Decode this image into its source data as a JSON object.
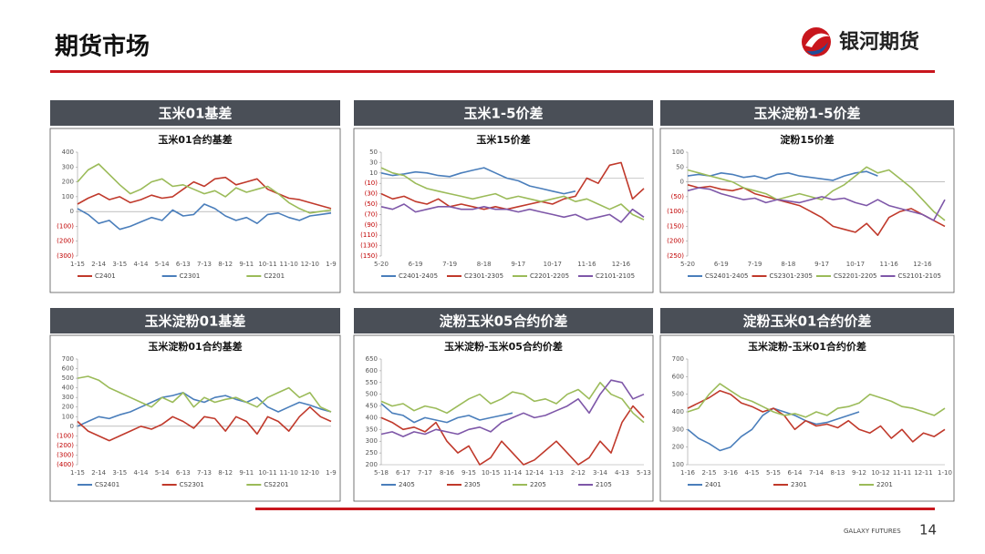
{
  "page_title": "期货市场",
  "logo_text": "银河期货",
  "footer_brand": "GALAXY FUTURES",
  "page_number": "14",
  "panels": [
    "玉米01基差",
    "玉米1-5价差",
    "玉米淀粉1-5价差",
    "玉米淀粉01基差",
    "淀粉玉米05合约价差",
    "淀粉玉米01合约价差"
  ],
  "chart_data": [
    {
      "type": "line",
      "title": "玉米01合约基差",
      "categories": [
        "1-15",
        null,
        "2-14",
        null,
        "3-15",
        null,
        "4-14",
        null,
        "5-14",
        null,
        "6-13",
        null,
        "7-13",
        null,
        "8-12",
        null,
        "9-11",
        null,
        "10-11",
        null,
        "11-10",
        null,
        "12-10",
        null,
        "1-9"
      ],
      "ylim": [
        -300,
        400
      ],
      "yticks": [
        400,
        300,
        200,
        100,
        0,
        {
          "value": -100,
          "label": "(100)"
        },
        {
          "value": -200,
          "label": "(200)"
        },
        {
          "value": -300,
          "label": "(300)"
        }
      ],
      "series": [
        {
          "name": "C2401",
          "color": "#c0392b",
          "values": [
            50,
            90,
            120,
            80,
            100,
            60,
            80,
            110,
            90,
            100,
            150,
            200,
            170,
            220,
            230,
            180,
            200,
            220,
            150,
            120,
            90,
            80,
            60,
            40,
            20
          ]
        },
        {
          "name": "C2301",
          "color": "#4a7ebb",
          "values": [
            20,
            -20,
            -80,
            -60,
            -120,
            -100,
            -70,
            -40,
            -60,
            10,
            -30,
            -20,
            50,
            20,
            -30,
            -60,
            -40,
            -80,
            -20,
            -10,
            -40,
            -60,
            -30,
            -20,
            -10
          ]
        },
        {
          "name": "C2201",
          "color": "#9bbb59",
          "values": [
            200,
            280,
            320,
            250,
            180,
            120,
            150,
            200,
            220,
            170,
            180,
            150,
            120,
            140,
            100,
            160,
            130,
            150,
            170,
            120,
            60,
            20,
            -10,
            0,
            10
          ]
        }
      ]
    },
    {
      "type": "line",
      "title": "玉米15价差",
      "categories": [
        "5-20",
        null,
        null,
        "6-19",
        null,
        null,
        "7-19",
        null,
        null,
        "8-18",
        null,
        null,
        "9-17",
        null,
        null,
        "10-17",
        null,
        null,
        "11-16",
        null,
        null,
        "12-16",
        null,
        null
      ],
      "ylim": [
        -150,
        50
      ],
      "yticks": [
        50,
        30,
        10,
        {
          "value": -10,
          "label": "(10)"
        },
        {
          "value": -30,
          "label": "(30)"
        },
        {
          "value": -50,
          "label": "(50)"
        },
        {
          "value": -70,
          "label": "(70)"
        },
        {
          "value": -90,
          "label": "(90)"
        },
        {
          "value": -110,
          "label": "(110)"
        },
        {
          "value": -130,
          "label": "(130)"
        },
        {
          "value": -150,
          "label": "(150)"
        }
      ],
      "series": [
        {
          "name": "C2401-2405",
          "color": "#4a7ebb",
          "values": [
            10,
            5,
            8,
            12,
            10,
            5,
            3,
            10,
            15,
            20,
            10,
            0,
            -5,
            -15,
            -20,
            -25,
            -30,
            -25,
            null,
            null,
            null,
            null,
            null,
            null
          ]
        },
        {
          "name": "C2301-2305",
          "color": "#c0392b",
          "values": [
            -30,
            -40,
            -35,
            -45,
            -50,
            -40,
            -55,
            -50,
            -55,
            -60,
            -55,
            -60,
            -55,
            -50,
            -45,
            -50,
            -40,
            -35,
            0,
            -10,
            25,
            30,
            -40,
            -20
          ]
        },
        {
          "name": "C2201-2205",
          "color": "#9bbb59",
          "values": [
            20,
            10,
            5,
            -10,
            -20,
            -25,
            -30,
            -35,
            -40,
            -35,
            -30,
            -40,
            -35,
            -40,
            -45,
            -40,
            -35,
            -45,
            -40,
            -50,
            -60,
            -50,
            -70,
            -80
          ]
        },
        {
          "name": "C2101-2105",
          "color": "#7e57a8",
          "values": [
            -55,
            -60,
            -50,
            -65,
            -60,
            -55,
            -55,
            -60,
            -60,
            -55,
            -60,
            -60,
            -65,
            -60,
            -65,
            -70,
            -75,
            -70,
            -80,
            -75,
            -70,
            -85,
            -60,
            -75
          ]
        }
      ]
    },
    {
      "type": "line",
      "title": "淀粉15价差",
      "categories": [
        "5-20",
        null,
        null,
        "6-19",
        null,
        null,
        "7-19",
        null,
        null,
        "8-18",
        null,
        null,
        "9-17",
        null,
        null,
        "10-17",
        null,
        null,
        "11-16",
        null,
        null,
        "12-16",
        null,
        null
      ],
      "ylim": [
        -250,
        100
      ],
      "yticks": [
        100,
        50,
        0,
        {
          "value": -50,
          "label": "(50)"
        },
        {
          "value": -100,
          "label": "(100)"
        },
        {
          "value": -150,
          "label": "(150)"
        },
        {
          "value": -200,
          "label": "(200)"
        },
        {
          "value": -250,
          "label": "(250)"
        }
      ],
      "series": [
        {
          "name": "CS2401-2405",
          "color": "#4a7ebb",
          "values": [
            20,
            25,
            20,
            30,
            25,
            15,
            20,
            10,
            25,
            30,
            20,
            15,
            10,
            5,
            20,
            30,
            35,
            20,
            null,
            null,
            null,
            null,
            null,
            null
          ]
        },
        {
          "name": "CS2301-2305",
          "color": "#c0392b",
          "values": [
            -10,
            -20,
            -15,
            -25,
            -30,
            -20,
            -40,
            -50,
            -60,
            -70,
            -80,
            -100,
            -120,
            -150,
            -160,
            -170,
            -140,
            -180,
            -120,
            -100,
            -90,
            -110,
            -130,
            -150
          ]
        },
        {
          "name": "CS2201-2205",
          "color": "#9bbb59",
          "values": [
            40,
            30,
            20,
            10,
            0,
            -20,
            -30,
            -40,
            -60,
            -50,
            -40,
            -50,
            -60,
            -30,
            -10,
            20,
            50,
            30,
            40,
            10,
            -20,
            -60,
            -100,
            -130
          ]
        },
        {
          "name": "CS2101-2105",
          "color": "#7e57a8",
          "values": [
            -30,
            -20,
            -25,
            -40,
            -50,
            -60,
            -55,
            -70,
            -60,
            -65,
            -70,
            -60,
            -50,
            -60,
            -55,
            -70,
            -80,
            -60,
            -80,
            -90,
            -100,
            -110,
            -130,
            -60
          ]
        }
      ]
    },
    {
      "type": "line",
      "title": "玉米淀粉01合约基差",
      "categories": [
        "1-15",
        null,
        "2-14",
        null,
        "3-15",
        null,
        "4-14",
        null,
        "5-14",
        null,
        "6-13",
        null,
        "7-13",
        null,
        "8-12",
        null,
        "9-11",
        null,
        "10-11",
        null,
        "11-10",
        null,
        "12-10",
        null,
        "1-9"
      ],
      "ylim": [
        -400,
        700
      ],
      "yticks": [
        700,
        600,
        500,
        400,
        300,
        200,
        100,
        0,
        {
          "value": -100,
          "label": "(100)"
        },
        {
          "value": -200,
          "label": "(200)"
        },
        {
          "value": -300,
          "label": "(300)"
        },
        {
          "value": -400,
          "label": "(400)"
        }
      ],
      "series": [
        {
          "name": "CS2401",
          "color": "#4a7ebb",
          "values": [
            0,
            50,
            100,
            80,
            120,
            150,
            200,
            250,
            300,
            320,
            350,
            280,
            250,
            300,
            320,
            280,
            250,
            300,
            200,
            150,
            200,
            250,
            220,
            180,
            150
          ]
        },
        {
          "name": "CS2301",
          "color": "#c0392b",
          "values": [
            50,
            -50,
            -100,
            -150,
            -100,
            -50,
            0,
            -30,
            20,
            100,
            50,
            -20,
            100,
            80,
            -50,
            100,
            50,
            -80,
            100,
            50,
            -50,
            100,
            200,
            100,
            50
          ]
        },
        {
          "name": "CS2201",
          "color": "#9bbb59",
          "values": [
            500,
            520,
            480,
            400,
            350,
            300,
            250,
            200,
            300,
            250,
            350,
            200,
            300,
            250,
            280,
            300,
            250,
            200,
            300,
            350,
            400,
            300,
            350,
            200,
            150
          ]
        }
      ]
    },
    {
      "type": "line",
      "title": "玉米淀粉-玉米05合约价差",
      "categories": [
        "5-18",
        null,
        "6-17",
        null,
        "7-17",
        null,
        "8-16",
        null,
        "9-15",
        null,
        "10-15",
        null,
        "11-14",
        null,
        "12-14",
        null,
        "1-13",
        null,
        "2-12",
        null,
        "3-14",
        null,
        "4-13",
        null,
        "5-13"
      ],
      "ylim": [
        200,
        650
      ],
      "yticks": [
        650,
        600,
        550,
        500,
        450,
        400,
        350,
        300,
        250,
        200
      ],
      "series": [
        {
          "name": "2405",
          "color": "#4a7ebb",
          "values": [
            460,
            420,
            410,
            380,
            400,
            390,
            380,
            400,
            410,
            390,
            400,
            410,
            420,
            null,
            null,
            null,
            null,
            null,
            null,
            null,
            null,
            null,
            null,
            null,
            null
          ]
        },
        {
          "name": "2305",
          "color": "#c0392b",
          "values": [
            400,
            380,
            350,
            360,
            340,
            380,
            300,
            250,
            280,
            200,
            230,
            300,
            250,
            200,
            220,
            260,
            300,
            250,
            200,
            230,
            300,
            250,
            380,
            450,
            400
          ]
        },
        {
          "name": "2205",
          "color": "#9bbb59",
          "values": [
            470,
            450,
            460,
            430,
            450,
            440,
            420,
            450,
            480,
            500,
            460,
            480,
            510,
            500,
            470,
            480,
            460,
            500,
            520,
            480,
            550,
            500,
            480,
            420,
            380
          ]
        },
        {
          "name": "2105",
          "color": "#7e57a8",
          "values": [
            330,
            340,
            320,
            340,
            330,
            350,
            340,
            330,
            350,
            360,
            340,
            380,
            400,
            420,
            400,
            410,
            430,
            450,
            480,
            420,
            500,
            560,
            550,
            480,
            500
          ]
        }
      ]
    },
    {
      "type": "line",
      "title": "玉米淀粉-玉米01合约价差",
      "categories": [
        "1-16",
        null,
        "2-15",
        null,
        "3-16",
        null,
        "4-15",
        null,
        "5-15",
        null,
        "6-14",
        null,
        "7-14",
        null,
        "8-13",
        null,
        "9-12",
        null,
        "10-12",
        null,
        "11-11",
        null,
        "12-11",
        null,
        "1-10"
      ],
      "ylim": [
        100,
        700
      ],
      "yticks": [
        700,
        600,
        500,
        400,
        300,
        200,
        100
      ],
      "series": [
        {
          "name": "2401",
          "color": "#4a7ebb",
          "values": [
            300,
            250,
            220,
            180,
            200,
            260,
            300,
            380,
            420,
            400,
            380,
            350,
            330,
            340,
            360,
            380,
            400,
            null,
            null,
            null,
            null,
            null,
            null,
            null,
            null
          ]
        },
        {
          "name": "2301",
          "color": "#c0392b",
          "values": [
            420,
            450,
            480,
            520,
            500,
            450,
            430,
            400,
            420,
            380,
            300,
            350,
            320,
            330,
            310,
            350,
            300,
            280,
            320,
            250,
            300,
            230,
            280,
            260,
            300
          ]
        },
        {
          "name": "2201",
          "color": "#9bbb59",
          "values": [
            400,
            420,
            500,
            560,
            520,
            480,
            460,
            430,
            400,
            380,
            390,
            370,
            400,
            380,
            420,
            430,
            450,
            500,
            480,
            460,
            430,
            420,
            400,
            380,
            420
          ]
        }
      ]
    }
  ]
}
